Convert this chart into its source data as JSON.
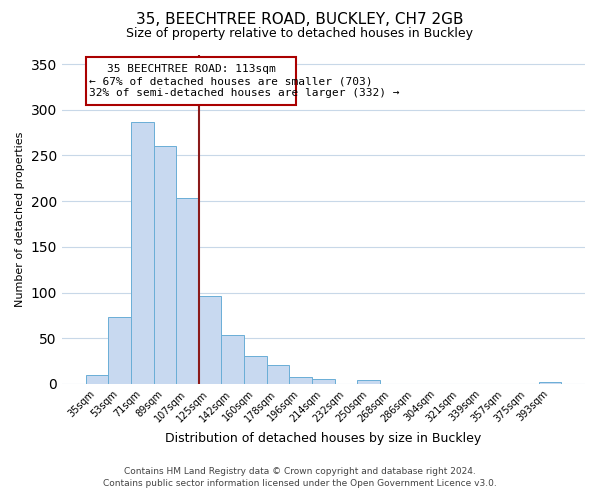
{
  "title": "35, BEECHTREE ROAD, BUCKLEY, CH7 2GB",
  "subtitle": "Size of property relative to detached houses in Buckley",
  "xlabel": "Distribution of detached houses by size in Buckley",
  "ylabel": "Number of detached properties",
  "bar_labels": [
    "35sqm",
    "53sqm",
    "71sqm",
    "89sqm",
    "107sqm",
    "125sqm",
    "142sqm",
    "160sqm",
    "178sqm",
    "196sqm",
    "214sqm",
    "232sqm",
    "250sqm",
    "268sqm",
    "286sqm",
    "304sqm",
    "321sqm",
    "339sqm",
    "357sqm",
    "375sqm",
    "393sqm"
  ],
  "bar_values": [
    10,
    73,
    287,
    260,
    204,
    96,
    54,
    31,
    21,
    8,
    5,
    0,
    4,
    0,
    0,
    0,
    0,
    0,
    0,
    0,
    2
  ],
  "bar_color": "#c8d9f0",
  "bar_edge_color": "#6aaed6",
  "ylim": [
    0,
    360
  ],
  "yticks": [
    0,
    50,
    100,
    150,
    200,
    250,
    300,
    350
  ],
  "vline_x": 4.5,
  "vline_color": "#8b1a1a",
  "property_label": "35 BEECHTREE ROAD: 113sqm",
  "annotation_line1": "← 67% of detached houses are smaller (703)",
  "annotation_line2": "32% of semi-detached houses are larger (332) →",
  "box_edge_color": "#aa0000",
  "footnote1": "Contains HM Land Registry data © Crown copyright and database right 2024.",
  "footnote2": "Contains public sector information licensed under the Open Government Licence v3.0.",
  "bg_color": "#ffffff",
  "grid_color": "#c8d8e8",
  "title_fontsize": 11,
  "subtitle_fontsize": 9,
  "ylabel_fontsize": 8,
  "xlabel_fontsize": 9,
  "tick_fontsize": 7,
  "annot_fontsize": 8,
  "footnote_fontsize": 6.5
}
